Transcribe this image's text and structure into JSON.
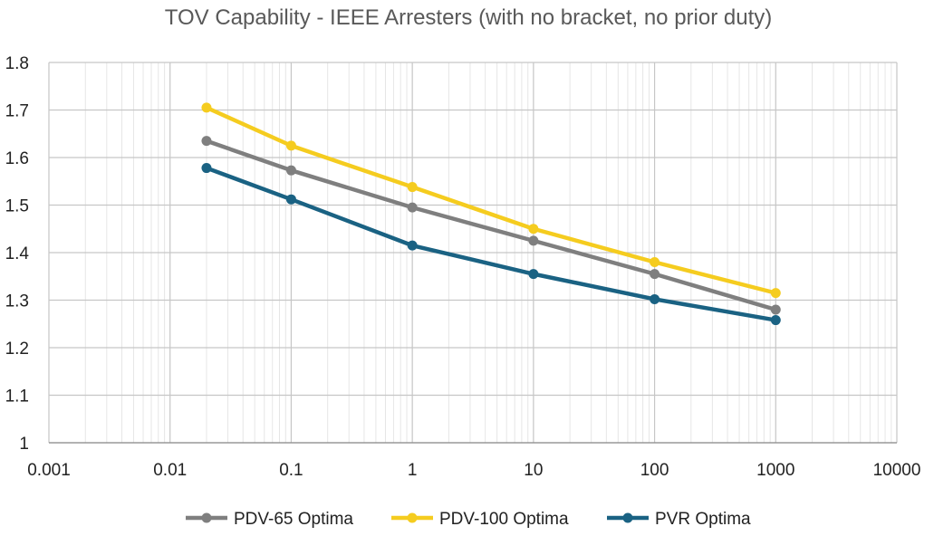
{
  "chart_data": {
    "type": "line",
    "title": "TOV Capability - IEEE Arresters (with no bracket, no prior duty)",
    "xlabel": "",
    "ylabel": "",
    "xscale": "log",
    "xlim": [
      0.001,
      10000
    ],
    "ylim": [
      1,
      1.8
    ],
    "x_ticks": [
      "0.001",
      "0.01",
      "0.1",
      "1",
      "10",
      "100",
      "1000",
      "10000"
    ],
    "y_ticks": [
      "1",
      "1.1",
      "1.2",
      "1.3",
      "1.4",
      "1.5",
      "1.6",
      "1.7",
      "1.8"
    ],
    "grid": true,
    "legend_position": "bottom",
    "x": [
      0.02,
      0.1,
      1,
      10,
      100,
      1000
    ],
    "series": [
      {
        "name": "PDV-65 Optima",
        "color": "#7f7f7f",
        "values": [
          1.635,
          1.573,
          1.495,
          1.425,
          1.355,
          1.28
        ]
      },
      {
        "name": "PDV-100 Optima",
        "color": "#f5cc1f",
        "values": [
          1.705,
          1.625,
          1.538,
          1.45,
          1.38,
          1.315
        ]
      },
      {
        "name": "PVR Optima",
        "color": "#1a6283",
        "values": [
          1.578,
          1.512,
          1.415,
          1.355,
          1.302,
          1.258
        ]
      }
    ]
  }
}
